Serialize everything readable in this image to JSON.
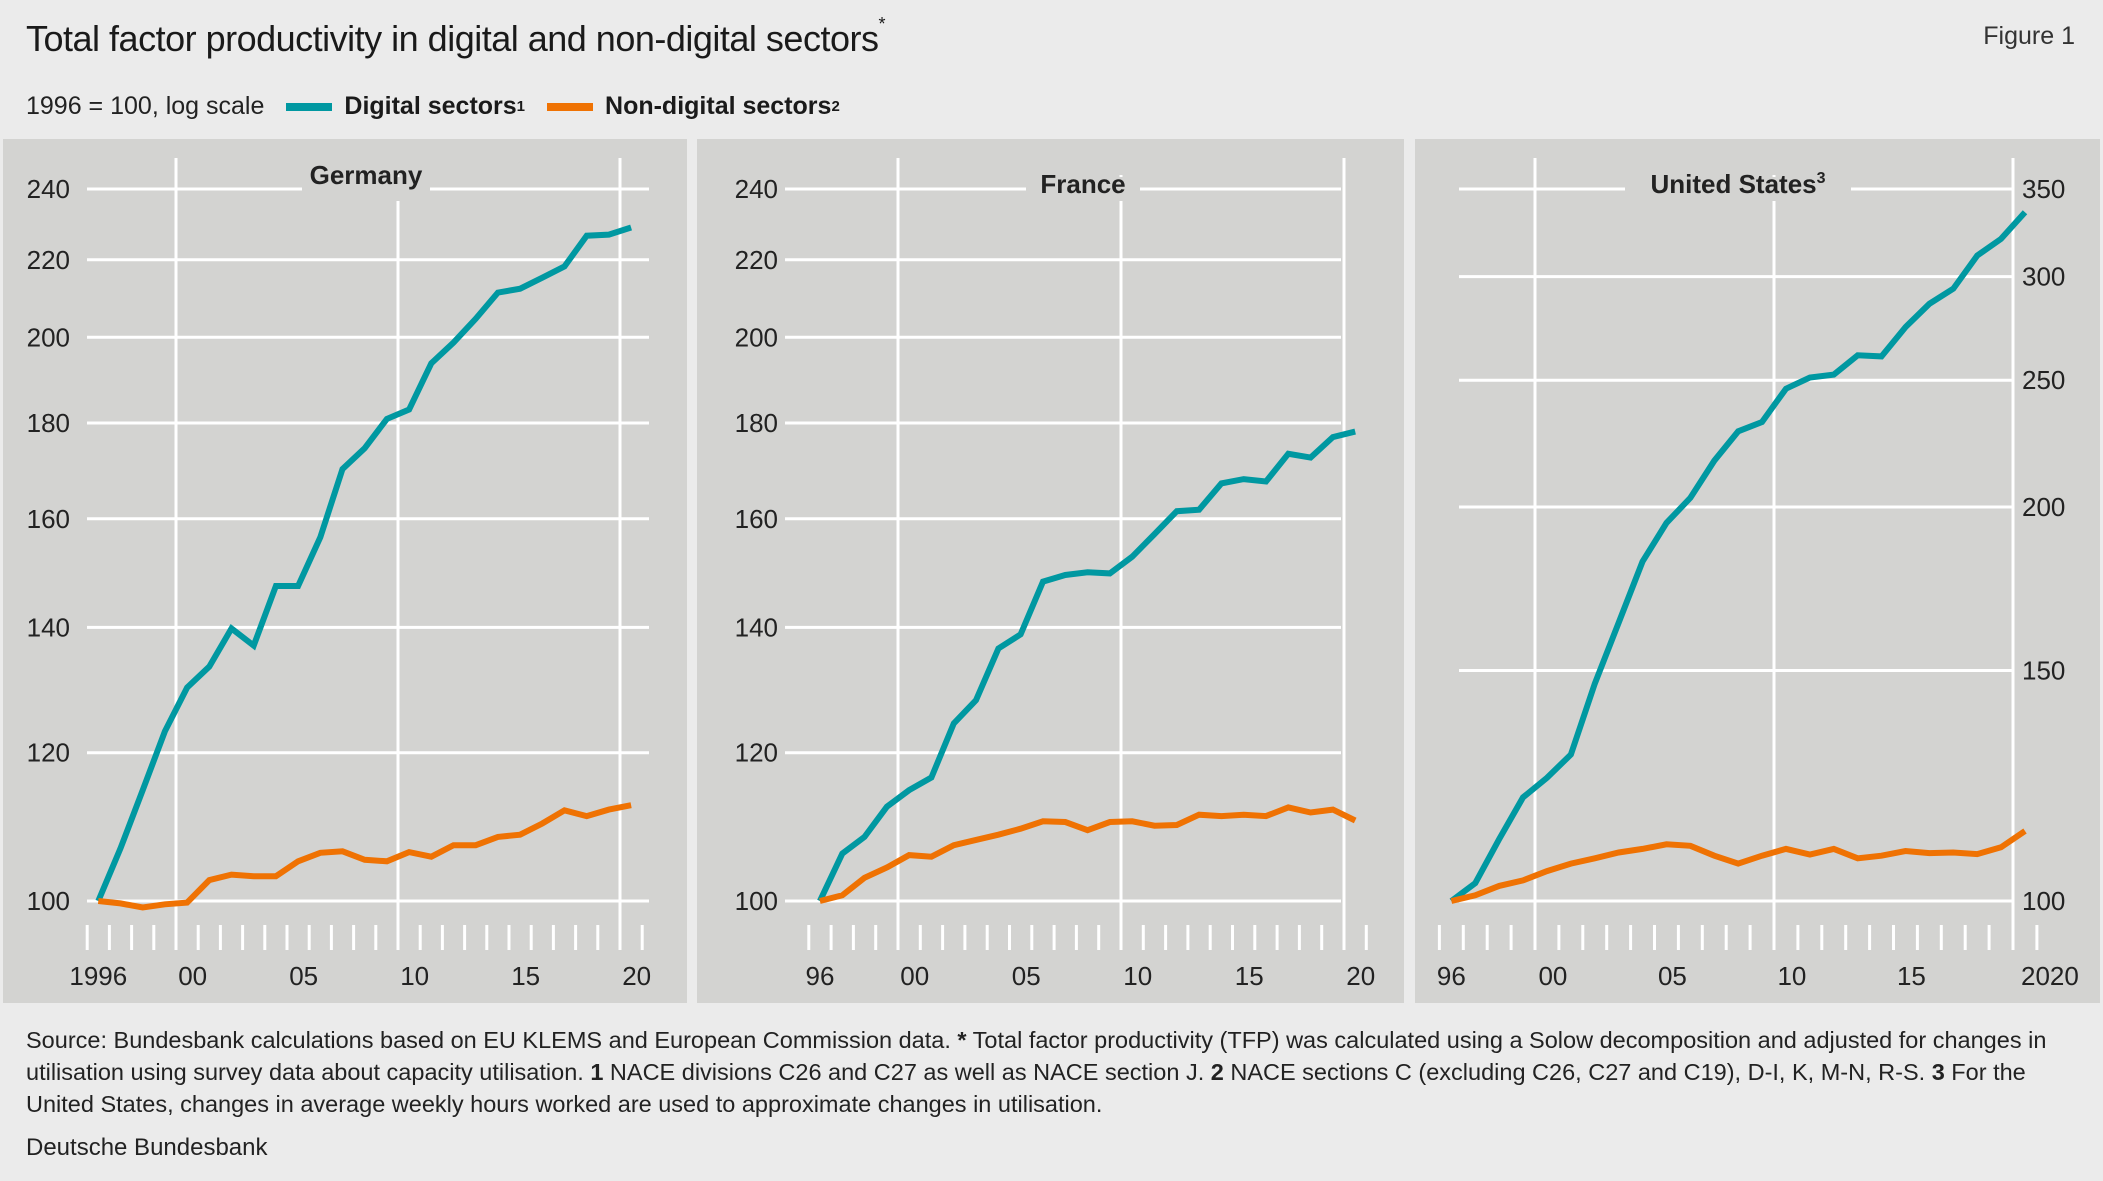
{
  "header": {
    "title": "Total factor productivity in digital and non-digital sectors",
    "title_footnote": "*",
    "figure_label": "Figure 1",
    "unit": "1996 = 100, log scale"
  },
  "legend": [
    {
      "label": "Digital sectors",
      "footnote": "1",
      "color": "#0098a1"
    },
    {
      "label": "Non-digital sectors",
      "footnote": "2",
      "color": "#ef7203"
    }
  ],
  "chart_data": [
    {
      "type": "line",
      "title": "Germany",
      "title_footnote": "",
      "y_scale": "log",
      "ylim": [
        100,
        240
      ],
      "y_ticks": [
        "100",
        "120",
        "140",
        "160",
        "180",
        "200",
        "220",
        "240"
      ],
      "y_axis_side": "left",
      "x": [
        1996,
        1997,
        1998,
        1999,
        2000,
        2001,
        2002,
        2003,
        2004,
        2005,
        2006,
        2007,
        2008,
        2009,
        2010,
        2011,
        2012,
        2013,
        2014,
        2015,
        2016,
        2017,
        2018,
        2019,
        2020
      ],
      "x_tick_labels": [
        "1996",
        "00",
        "05",
        "10",
        "15",
        "20"
      ],
      "grid": true,
      "series": [
        {
          "name": "Digital sectors",
          "color": "#0098a1",
          "values": [
            100,
            106.7,
            114.6,
            123.2,
            130,
            133.4,
            139.8,
            136.9,
            147.3,
            147.3,
            156.4,
            170.1,
            174.5,
            180.9,
            183,
            193.7,
            198.7,
            204.6,
            211.3,
            212.3,
            215.2,
            218.2,
            226.6,
            226.9,
            228.9
          ]
        },
        {
          "name": "Non-digital sectors",
          "color": "#ef7203",
          "values": [
            100,
            99.7,
            99.2,
            99.6,
            99.8,
            102.6,
            103.3,
            103.1,
            103.1,
            105,
            106.1,
            106.3,
            105.2,
            105,
            106.2,
            105.6,
            107.1,
            107.1,
            108.2,
            108.5,
            110,
            111.8,
            111,
            111.9,
            112.5
          ]
        }
      ]
    },
    {
      "type": "line",
      "title": "France",
      "title_footnote": "",
      "y_scale": "log",
      "ylim": [
        100,
        240
      ],
      "y_ticks": [
        "100",
        "120",
        "140",
        "160",
        "180",
        "200",
        "220",
        "240"
      ],
      "y_axis_side": "left",
      "x": [
        1996,
        1997,
        1998,
        1999,
        2000,
        2001,
        2002,
        2003,
        2004,
        2005,
        2006,
        2007,
        2008,
        2009,
        2010,
        2011,
        2012,
        2013,
        2014,
        2015,
        2016,
        2017,
        2018,
        2019,
        2020
      ],
      "x_tick_labels": [
        "96",
        "00",
        "05",
        "10",
        "15",
        "20"
      ],
      "grid": true,
      "series": [
        {
          "name": "Digital sectors",
          "color": "#0098a1",
          "values": [
            100,
            106,
            108.2,
            112.3,
            114.6,
            116.4,
            124.4,
            128,
            136.4,
            138.8,
            148.1,
            149.3,
            149.8,
            149.6,
            152.7,
            157,
            161.5,
            161.8,
            167.1,
            168,
            167.5,
            173.3,
            172.5,
            176.9,
            178.1
          ]
        },
        {
          "name": "Non-digital sectors",
          "color": "#ef7203",
          "values": [
            100,
            100.7,
            102.9,
            104.2,
            105.8,
            105.6,
            107.1,
            107.8,
            108.5,
            109.3,
            110.3,
            110.2,
            109.1,
            110.2,
            110.3,
            109.7,
            109.8,
            111.2,
            111,
            111.2,
            111,
            112.2,
            111.5,
            111.9,
            110.4
          ]
        }
      ]
    },
    {
      "type": "line",
      "title": "United States",
      "title_footnote": "3",
      "y_scale": "log",
      "ylim": [
        100,
        350
      ],
      "y_ticks": [
        "100",
        "150",
        "200",
        "250",
        "300",
        "350"
      ],
      "y_axis_side": "right",
      "x": [
        1996,
        1997,
        1998,
        1999,
        2000,
        2001,
        2002,
        2003,
        2004,
        2005,
        2006,
        2007,
        2008,
        2009,
        2010,
        2011,
        2012,
        2013,
        2014,
        2015,
        2016,
        2017,
        2018,
        2019,
        2020
      ],
      "x_tick_labels": [
        "96",
        "00",
        "05",
        "10",
        "15",
        "2020"
      ],
      "grid": true,
      "series": [
        {
          "name": "Digital sectors",
          "color": "#0098a1",
          "values": [
            100,
            103.2,
            111.5,
            120,
            124.2,
            129.4,
            146.6,
            163.2,
            181.7,
            194.5,
            203.3,
            217,
            228.5,
            232.3,
            246.3,
            251.2,
            252.5,
            261.2,
            260.7,
            274.5,
            286,
            293.7,
            311.3,
            320.6,
            336
          ]
        },
        {
          "name": "Non-digital sectors",
          "color": "#ef7203",
          "values": [
            100,
            101,
            102.7,
            103.7,
            105.4,
            106.8,
            107.8,
            108.9,
            109.6,
            110.5,
            110.2,
            108.3,
            106.8,
            108.3,
            109.6,
            108.5,
            109.6,
            107.8,
            108.3,
            109.2,
            108.8,
            108.9,
            108.6,
            109.9,
            113.1
          ]
        }
      ]
    }
  ],
  "footer": {
    "segments": [
      {
        "text": "Source: Bundesbank calculations based on EU KLEMS and European Commission data. ",
        "bold": false
      },
      {
        "text": "*",
        "bold": true
      },
      {
        "text": " Total factor productivity (TFP) was calculated using a Solow decomposition and adjusted for changes in utilisation using survey data about capacity utilisation. ",
        "bold": false
      },
      {
        "text": "1",
        "bold": true
      },
      {
        "text": " NACE divisions C26 and C27 as well as NACE section J. ",
        "bold": false
      },
      {
        "text": "2",
        "bold": true
      },
      {
        "text": " NACE sections C (excluding C26, C27 and C19), D-I, K, M-N, R-S. ",
        "bold": false
      },
      {
        "text": "3",
        "bold": true
      },
      {
        "text": " For the United States, changes in average weekly hours worked are used to approximate changes in utilisation.",
        "bold": false
      }
    ],
    "publisher": "Deutsche Bundesbank"
  }
}
